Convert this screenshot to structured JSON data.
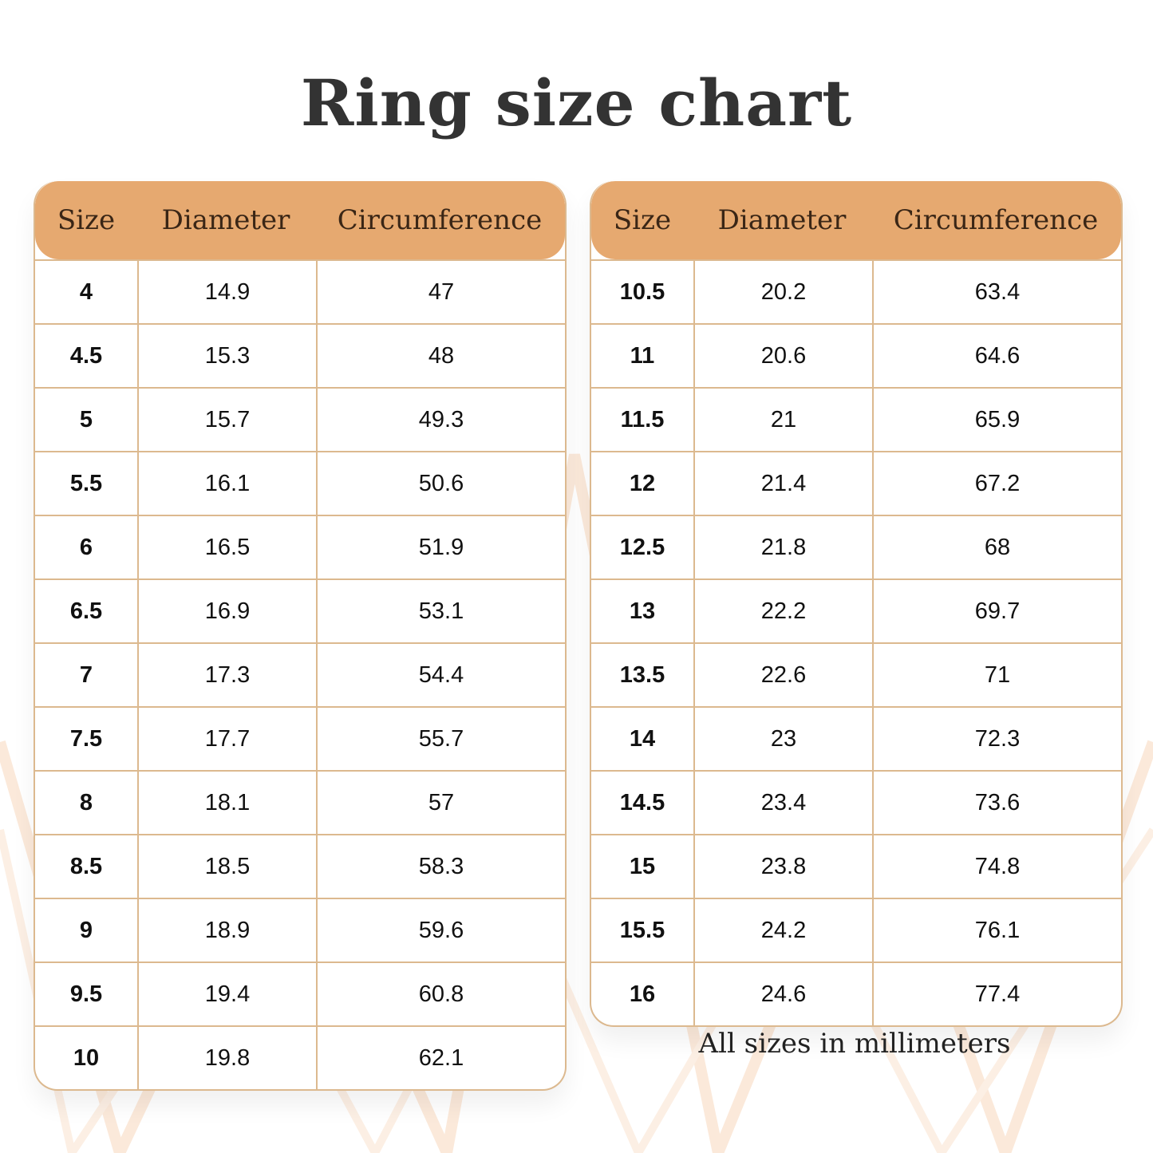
{
  "title": "Ring size chart",
  "columns": [
    "Size",
    "Diameter",
    "Circumference"
  ],
  "colors": {
    "header": "#e6a970",
    "border": "#dcb98f",
    "decor": "#fbe9da"
  },
  "tables": [
    {
      "rows": [
        [
          "4",
          "14.9",
          "47"
        ],
        [
          "4.5",
          "15.3",
          "48"
        ],
        [
          "5",
          "15.7",
          "49.3"
        ],
        [
          "5.5",
          "16.1",
          "50.6"
        ],
        [
          "6",
          "16.5",
          "51.9"
        ],
        [
          "6.5",
          "16.9",
          "53.1"
        ],
        [
          "7",
          "17.3",
          "54.4"
        ],
        [
          "7.5",
          "17.7",
          "55.7"
        ],
        [
          "8",
          "18.1",
          "57"
        ],
        [
          "8.5",
          "18.5",
          "58.3"
        ],
        [
          "9",
          "18.9",
          "59.6"
        ],
        [
          "9.5",
          "19.4",
          "60.8"
        ],
        [
          "10",
          "19.8",
          "62.1"
        ]
      ]
    },
    {
      "rows": [
        [
          "10.5",
          "20.2",
          "63.4"
        ],
        [
          "11",
          "20.6",
          "64.6"
        ],
        [
          "11.5",
          "21",
          "65.9"
        ],
        [
          "12",
          "21.4",
          "67.2"
        ],
        [
          "12.5",
          "21.8",
          "68"
        ],
        [
          "13",
          "22.2",
          "69.7"
        ],
        [
          "13.5",
          "22.6",
          "71"
        ],
        [
          "14",
          "23",
          "72.3"
        ],
        [
          "14.5",
          "23.4",
          "73.6"
        ],
        [
          "15",
          "23.8",
          "74.8"
        ],
        [
          "15.5",
          "24.2",
          "76.1"
        ],
        [
          "16",
          "24.6",
          "77.4"
        ]
      ]
    }
  ],
  "note": "All sizes in millimeters"
}
